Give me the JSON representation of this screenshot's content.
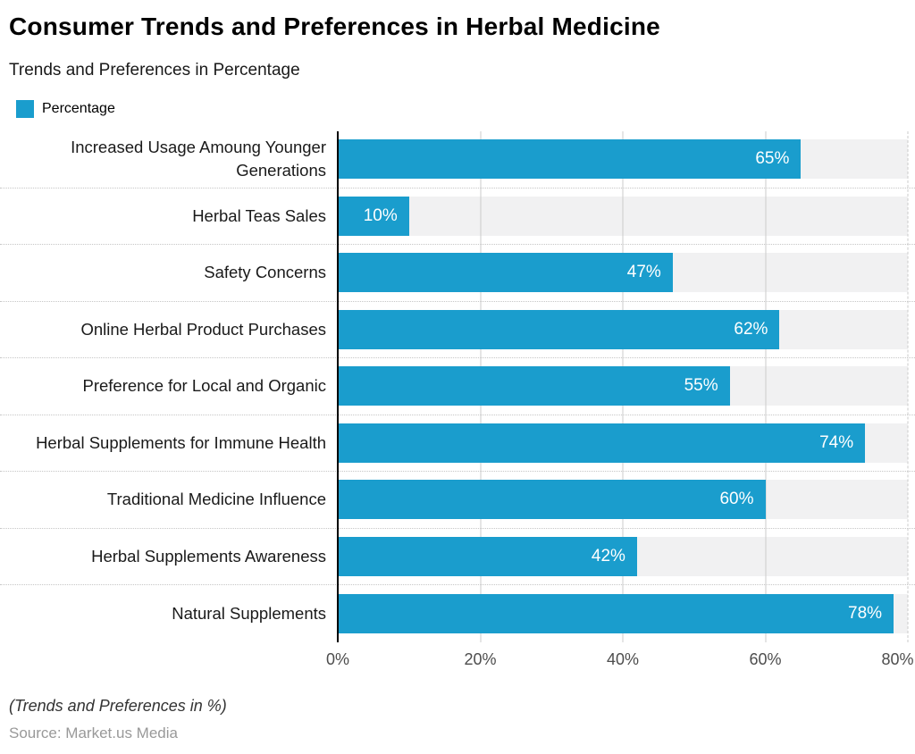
{
  "header": {
    "title": "Consumer Trends and Preferences in Herbal Medicine",
    "subtitle": "Trends and Preferences in Percentage"
  },
  "legend": {
    "label": "Percentage",
    "color": "#1a9dcd"
  },
  "chart_data": {
    "type": "bar",
    "orientation": "horizontal",
    "title": "Consumer Trends and Preferences in Herbal Medicine",
    "subtitle": "Trends and Preferences in Percentage",
    "series_name": "Percentage",
    "categories": [
      "Increased Usage Amoung Younger Generations",
      "Herbal Teas Sales",
      "Safety Concerns",
      "Online Herbal Product Purchases",
      "Preference for Local and Organic",
      "Herbal Supplements for Immune Health",
      "Traditional Medicine Influence",
      "Herbal Supplements Awareness",
      "Natural Supplements"
    ],
    "values": [
      65,
      10,
      47,
      62,
      55,
      74,
      60,
      42,
      78
    ],
    "value_labels": [
      "65%",
      "10%",
      "47%",
      "62%",
      "55%",
      "74%",
      "60%",
      "42%",
      "78%"
    ],
    "xlabel": "",
    "ylabel": "",
    "xlim": [
      0,
      80
    ],
    "x_ticks": [
      "0%",
      "20%",
      "40%",
      "60%",
      "80%"
    ],
    "grid": true,
    "legend_position": "top-left",
    "bar_color": "#1a9dcd",
    "track_color": "#f1f1f2",
    "gridline_color": "#cbcbcb",
    "axis_line_color": "#000000"
  },
  "footer": {
    "note": "(Trends and Preferences in %)",
    "source": "Source: Market.us Media"
  }
}
